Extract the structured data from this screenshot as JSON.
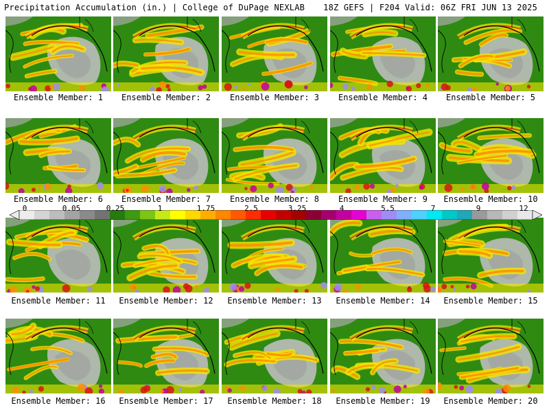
{
  "header": {
    "title": "Precipitation Accumulation (in.) | College of DuPage NEXLAB",
    "run_info": "18Z GEFS | F204 Valid: 06Z FRI JUN 13 2025"
  },
  "colorbar": {
    "ticks": [
      "0",
      "0.05",
      "0.25",
      "1",
      "1.75",
      "2.5",
      "3.25",
      "4",
      "5.5",
      "7",
      "9",
      "12"
    ],
    "colors": [
      "#ededed",
      "#d4d4d4",
      "#bdbdbd",
      "#a3a3a3",
      "#8a8a8a",
      "#737373",
      "#277a0f",
      "#3e9a10",
      "#7ec415",
      "#c7e81b",
      "#ffff00",
      "#ffd800",
      "#ffae00",
      "#ff8600",
      "#ff5a00",
      "#ff2d00",
      "#e60000",
      "#c30000",
      "#a40000",
      "#8c0036",
      "#a4006e",
      "#c4009e",
      "#e600d2",
      "#c95fef",
      "#9f8cf5",
      "#7fb0ff",
      "#4fd0ff",
      "#00e8f0",
      "#00c8c8",
      "#20a8b8",
      "#9a9a9a",
      "#b8b8b8",
      "#d0d0d0",
      "#e8e8e8"
    ]
  },
  "palette": {
    "land_green": "#2f8a12",
    "dry_gray": "#bdbdbd",
    "yellow": "#f2e600",
    "orange": "#ff8c00",
    "red": "#d81414",
    "magenta": "#c4009e",
    "lavender": "#9f8cf5"
  },
  "members": [
    {
      "label": "Ensemble Member: 1"
    },
    {
      "label": "Ensemble Member: 2"
    },
    {
      "label": "Ensemble Member: 3"
    },
    {
      "label": "Ensemble Member: 4"
    },
    {
      "label": "Ensemble Member: 5"
    },
    {
      "label": "Ensemble Member: 6"
    },
    {
      "label": "Ensemble Member: 7"
    },
    {
      "label": "Ensemble Member: 8"
    },
    {
      "label": "Ensemble Member: 9"
    },
    {
      "label": "Ensemble Member: 10"
    },
    {
      "label": "Ensemble Member: 11"
    },
    {
      "label": "Ensemble Member: 12"
    },
    {
      "label": "Ensemble Member: 13"
    },
    {
      "label": "Ensemble Member: 14"
    },
    {
      "label": "Ensemble Member: 15"
    },
    {
      "label": "Ensemble Member: 16"
    },
    {
      "label": "Ensemble Member: 17"
    },
    {
      "label": "Ensemble Member: 18"
    },
    {
      "label": "Ensemble Member: 19"
    },
    {
      "label": "Ensemble Member: 20"
    }
  ]
}
